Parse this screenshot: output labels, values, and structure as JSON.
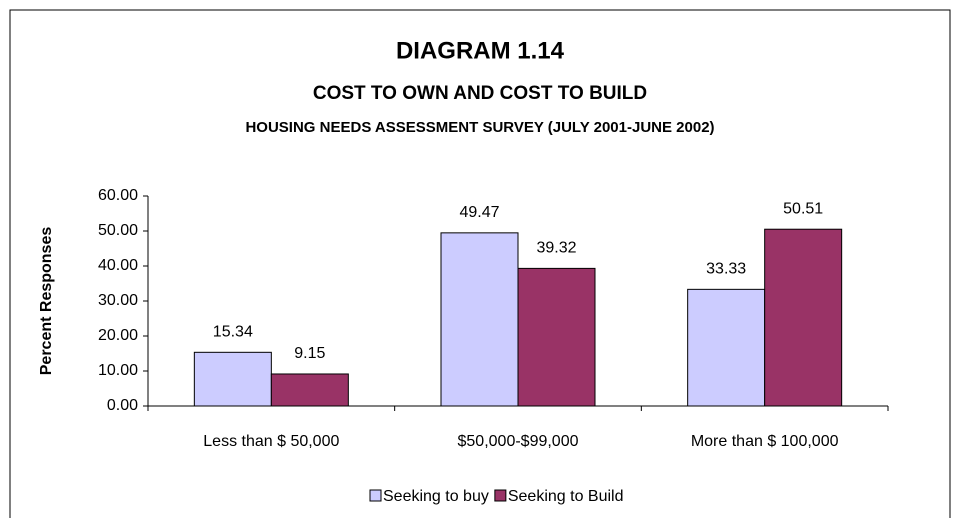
{
  "chart_data": {
    "type": "bar",
    "title": "DIAGRAM 1.14",
    "subtitle": "COST TO OWN AND COST TO BUILD",
    "caption": "HOUSING NEEDS ASSESSMENT SURVEY (JULY 2001-JUNE 2002)",
    "y_label": "Percent Responses",
    "categories": [
      "Less than $ 50,000",
      "$50,000-$99,000",
      "More than $ 100,000"
    ],
    "series": [
      {
        "name": "Seeking to buy",
        "color": "#ccccff",
        "values": [
          15.34,
          49.47,
          33.33
        ]
      },
      {
        "name": "Seeking to Build",
        "color": "#993366",
        "values": [
          9.15,
          39.32,
          50.51
        ]
      }
    ],
    "ylim": [
      0,
      60
    ],
    "yticks": [
      {
        "value": 0,
        "label": "0.00"
      },
      {
        "value": 10,
        "label": "10.00"
      },
      {
        "value": 20,
        "label": "20.00"
      },
      {
        "value": 30,
        "label": "30.00"
      },
      {
        "value": 40,
        "label": "40.00"
      },
      {
        "value": 50,
        "label": "50.00"
      },
      {
        "value": 60,
        "label": "60.00"
      }
    ],
    "legend": "bottom"
  }
}
